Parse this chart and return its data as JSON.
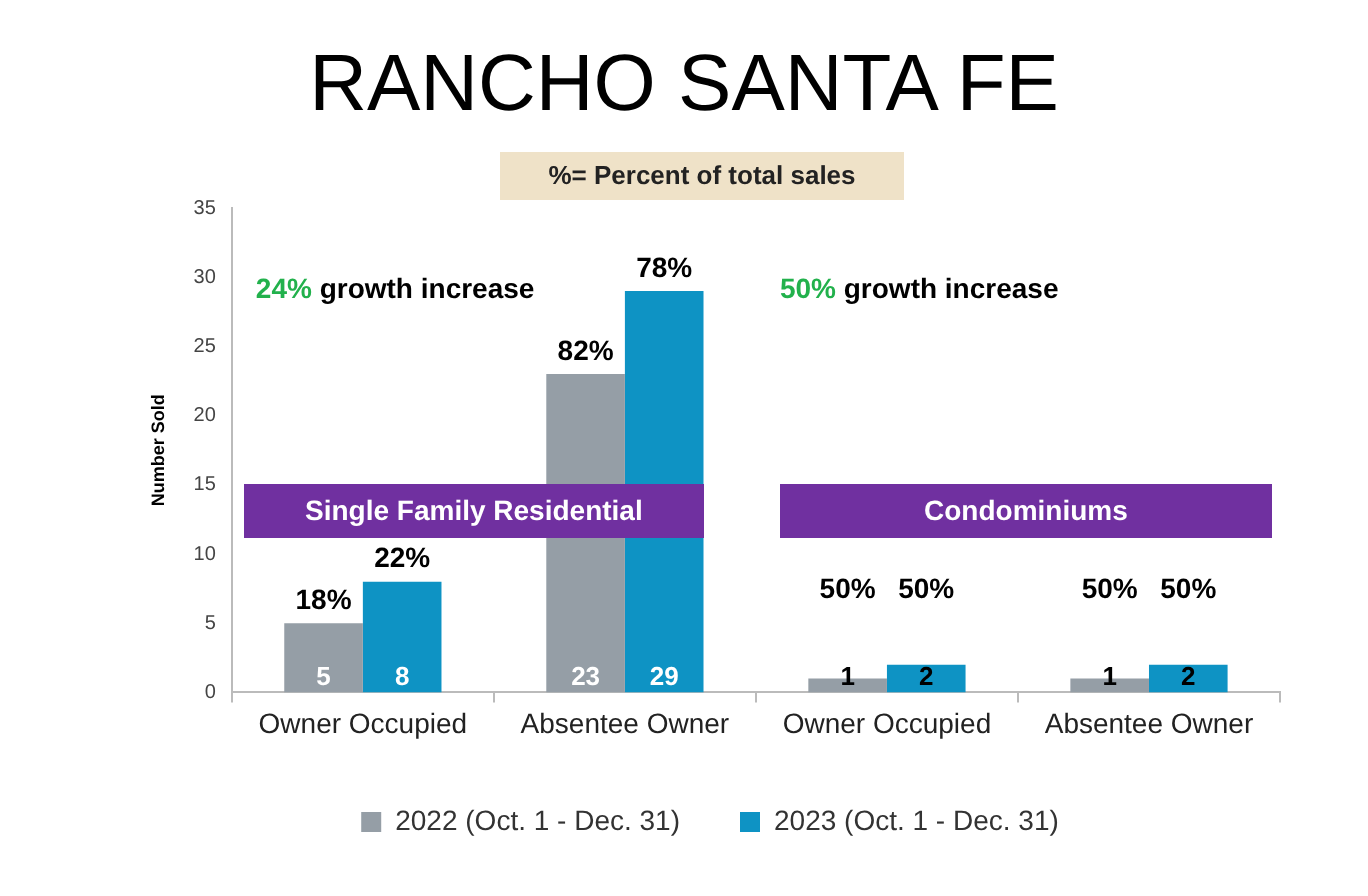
{
  "chart_data": {
    "type": "bar",
    "title": "RANCHO SANTA FE",
    "subtitle": "%= Percent of total sales",
    "ylabel": "Number Sold",
    "categories": [
      "Owner Occupied",
      "Absentee Owner",
      "Owner Occupied",
      "Absentee Owner"
    ],
    "series": [
      {
        "name": "2022 (Oct. 1 - Dec. 31)",
        "color": "#959ea6",
        "values": [
          5,
          23,
          1,
          1
        ]
      },
      {
        "name": "2023 (Oct. 1 - Dec. 31)",
        "color": "#0e93c4",
        "values": [
          8,
          29,
          2,
          2
        ]
      }
    ],
    "ylim": [
      0,
      35
    ],
    "yticks": [
      0,
      5,
      10,
      15,
      20,
      25,
      30,
      35
    ],
    "grid": false,
    "legend": "bottom",
    "data_labels": true,
    "annotations": [
      "24% growth increase",
      "Single Family Residential",
      "50% growth increase",
      "Condominiums",
      {
        "text": "18%",
        "x": "Owner Occupied",
        "y": 5
      },
      {
        "text": "22%",
        "x": "Owner Occupied",
        "y": 8
      },
      {
        "text": "82%",
        "x": "Absentee Owner",
        "y": 23
      },
      {
        "text": "78%",
        "x": "Absentee Owner",
        "y": 29
      },
      "50%",
      "50%",
      "50%",
      "50%"
    ]
  }
}
